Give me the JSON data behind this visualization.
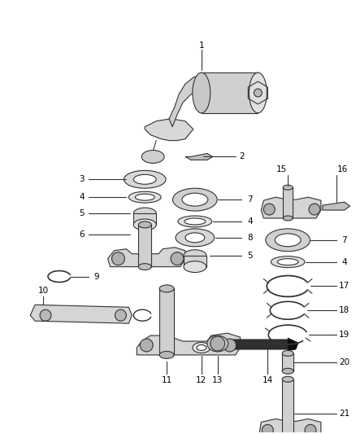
{
  "bg_color": "#ffffff",
  "line_color": "#333333",
  "label_color": "#000000",
  "label_fontsize": 7.5
}
